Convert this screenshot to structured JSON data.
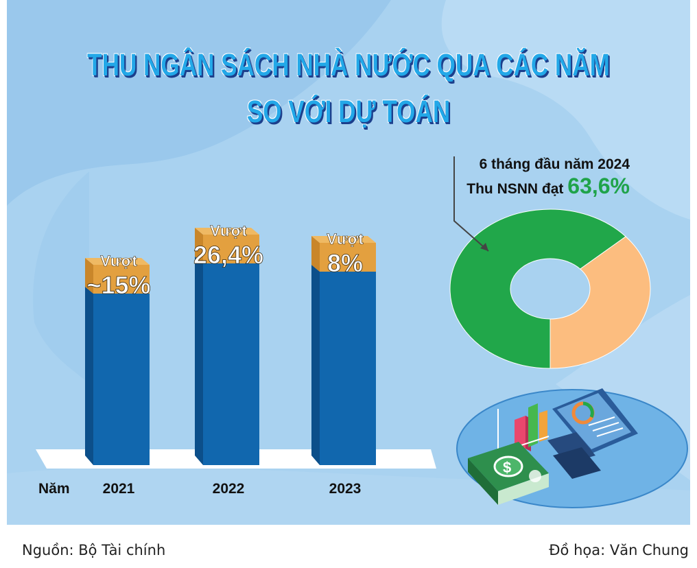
{
  "title_line1": "THU NGÂN SÁCH NHÀ NƯỚC QUA CÁC NĂM",
  "title_line2": "SO VỚI DỰ TOÁN",
  "colors": {
    "background": "#a9d2f0",
    "bar_blue": "#1167ae",
    "bar_blue_dark": "#0c4f8a",
    "bar_top": "#e3a03f",
    "bar_top_dark": "#c9862a",
    "donut_green": "#21a74a",
    "donut_peach": "#fcbd7f",
    "highlight_green": "#1fa34a"
  },
  "chart_data": [
    {
      "type": "bar",
      "xlabel": "Năm",
      "categories": [
        "2021",
        "2022",
        "2023"
      ],
      "series": [
        {
          "values": [
            15,
            26.4,
            8
          ]
        }
      ],
      "bar_labels": [
        {
          "prefix": "Vượt",
          "value": "~15%"
        },
        {
          "prefix": "Vượt",
          "value": "26,4%"
        },
        {
          "prefix": "Vượt",
          "value": "8%"
        }
      ]
    },
    {
      "type": "pie",
      "subtitle": "6 tháng đầu năm 2024",
      "label_prefix": "Thu NSNN đạt",
      "value_text": "63,6%",
      "values": [
        63.6,
        36.4
      ]
    }
  ],
  "footer": {
    "source": "Nguồn: Bộ Tài chính",
    "credit": "Đồ họa: Văn Chung"
  }
}
